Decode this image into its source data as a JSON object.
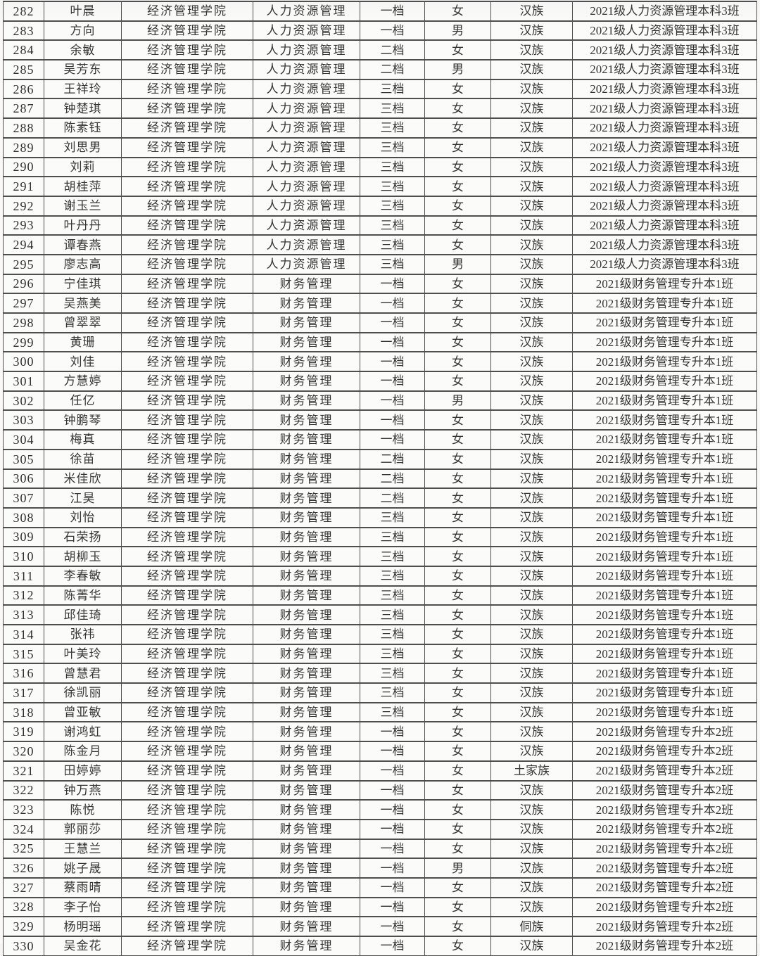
{
  "document": {
    "type": "student-roster-table",
    "college_label": "经济管理学院",
    "tier_values": [
      "一档",
      "二档",
      "三档"
    ],
    "border_color": "#4e4e4e",
    "paper_color": "#fbfbfa",
    "text_color": "#353535"
  },
  "table": {
    "columns": [
      "no",
      "name",
      "college",
      "major",
      "tier",
      "gender",
      "ethnicity",
      "class_name"
    ],
    "rows": [
      [
        "282",
        "叶晨",
        "经济管理学院",
        "人力资源管理",
        "一档",
        "女",
        "汉族",
        "2021级人力资源管理本科3班"
      ],
      [
        "283",
        "方向",
        "经济管理学院",
        "人力资源管理",
        "一档",
        "男",
        "汉族",
        "2021级人力资源管理本科3班"
      ],
      [
        "284",
        "余敏",
        "经济管理学院",
        "人力资源管理",
        "二档",
        "女",
        "汉族",
        "2021级人力资源管理本科3班"
      ],
      [
        "285",
        "吴芳东",
        "经济管理学院",
        "人力资源管理",
        "二档",
        "男",
        "汉族",
        "2021级人力资源管理本科3班"
      ],
      [
        "286",
        "王祥玲",
        "经济管理学院",
        "人力资源管理",
        "三档",
        "女",
        "汉族",
        "2021级人力资源管理本科3班"
      ],
      [
        "287",
        "钟楚琪",
        "经济管理学院",
        "人力资源管理",
        "三档",
        "女",
        "汉族",
        "2021级人力资源管理本科3班"
      ],
      [
        "288",
        "陈素钰",
        "经济管理学院",
        "人力资源管理",
        "三档",
        "女",
        "汉族",
        "2021级人力资源管理本科3班"
      ],
      [
        "289",
        "刘思男",
        "经济管理学院",
        "人力资源管理",
        "三档",
        "女",
        "汉族",
        "2021级人力资源管理本科3班"
      ],
      [
        "290",
        "刘莉",
        "经济管理学院",
        "人力资源管理",
        "三档",
        "女",
        "汉族",
        "2021级人力资源管理本科3班"
      ],
      [
        "291",
        "胡桂萍",
        "经济管理学院",
        "人力资源管理",
        "三档",
        "女",
        "汉族",
        "2021级人力资源管理本科3班"
      ],
      [
        "292",
        "谢玉兰",
        "经济管理学院",
        "人力资源管理",
        "三档",
        "女",
        "汉族",
        "2021级人力资源管理本科3班"
      ],
      [
        "293",
        "叶丹丹",
        "经济管理学院",
        "人力资源管理",
        "三档",
        "女",
        "汉族",
        "2021级人力资源管理本科3班"
      ],
      [
        "294",
        "谭春燕",
        "经济管理学院",
        "人力资源管理",
        "三档",
        "女",
        "汉族",
        "2021级人力资源管理本科3班"
      ],
      [
        "295",
        "廖志高",
        "经济管理学院",
        "人力资源管理",
        "三档",
        "男",
        "汉族",
        "2021级人力资源管理本科3班"
      ],
      [
        "296",
        "宁佳琪",
        "经济管理学院",
        "财务管理",
        "一档",
        "女",
        "汉族",
        "2021级财务管理专升本1班"
      ],
      [
        "297",
        "吴燕美",
        "经济管理学院",
        "财务管理",
        "一档",
        "女",
        "汉族",
        "2021级财务管理专升本1班"
      ],
      [
        "298",
        "曾翠翠",
        "经济管理学院",
        "财务管理",
        "一档",
        "女",
        "汉族",
        "2021级财务管理专升本1班"
      ],
      [
        "299",
        "黄珊",
        "经济管理学院",
        "财务管理",
        "一档",
        "女",
        "汉族",
        "2021级财务管理专升本1班"
      ],
      [
        "300",
        "刘佳",
        "经济管理学院",
        "财务管理",
        "一档",
        "女",
        "汉族",
        "2021级财务管理专升本1班"
      ],
      [
        "301",
        "方慧婷",
        "经济管理学院",
        "财务管理",
        "一档",
        "女",
        "汉族",
        "2021级财务管理专升本1班"
      ],
      [
        "302",
        "任亿",
        "经济管理学院",
        "财务管理",
        "一档",
        "男",
        "汉族",
        "2021级财务管理专升本1班"
      ],
      [
        "303",
        "钟鹏琴",
        "经济管理学院",
        "财务管理",
        "一档",
        "女",
        "汉族",
        "2021级财务管理专升本1班"
      ],
      [
        "304",
        "梅真",
        "经济管理学院",
        "财务管理",
        "一档",
        "女",
        "汉族",
        "2021级财务管理专升本1班"
      ],
      [
        "305",
        "徐苗",
        "经济管理学院",
        "财务管理",
        "二档",
        "女",
        "汉族",
        "2021级财务管理专升本1班"
      ],
      [
        "306",
        "米佳欣",
        "经济管理学院",
        "财务管理",
        "二档",
        "女",
        "汉族",
        "2021级财务管理专升本1班"
      ],
      [
        "307",
        "江昊",
        "经济管理学院",
        "财务管理",
        "二档",
        "女",
        "汉族",
        "2021级财务管理专升本1班"
      ],
      [
        "308",
        "刘怡",
        "经济管理学院",
        "财务管理",
        "三档",
        "女",
        "汉族",
        "2021级财务管理专升本1班"
      ],
      [
        "309",
        "石荣扬",
        "经济管理学院",
        "财务管理",
        "三档",
        "女",
        "汉族",
        "2021级财务管理专升本1班"
      ],
      [
        "310",
        "胡柳玉",
        "经济管理学院",
        "财务管理",
        "三档",
        "女",
        "汉族",
        "2021级财务管理专升本1班"
      ],
      [
        "311",
        "李春敏",
        "经济管理学院",
        "财务管理",
        "三档",
        "女",
        "汉族",
        "2021级财务管理专升本1班"
      ],
      [
        "312",
        "陈菁华",
        "经济管理学院",
        "财务管理",
        "三档",
        "女",
        "汉族",
        "2021级财务管理专升本1班"
      ],
      [
        "313",
        "邱佳琦",
        "经济管理学院",
        "财务管理",
        "三档",
        "女",
        "汉族",
        "2021级财务管理专升本1班"
      ],
      [
        "314",
        "张祎",
        "经济管理学院",
        "财务管理",
        "三档",
        "女",
        "汉族",
        "2021级财务管理专升本1班"
      ],
      [
        "315",
        "叶美玲",
        "经济管理学院",
        "财务管理",
        "三档",
        "女",
        "汉族",
        "2021级财务管理专升本1班"
      ],
      [
        "316",
        "曾慧君",
        "经济管理学院",
        "财务管理",
        "三档",
        "女",
        "汉族",
        "2021级财务管理专升本1班"
      ],
      [
        "317",
        "徐凯丽",
        "经济管理学院",
        "财务管理",
        "三档",
        "女",
        "汉族",
        "2021级财务管理专升本1班"
      ],
      [
        "318",
        "曾亚敏",
        "经济管理学院",
        "财务管理",
        "三档",
        "女",
        "汉族",
        "2021级财务管理专升本1班"
      ],
      [
        "319",
        "谢鸿虹",
        "经济管理学院",
        "财务管理",
        "一档",
        "女",
        "汉族",
        "2021级财务管理专升本2班"
      ],
      [
        "320",
        "陈金月",
        "经济管理学院",
        "财务管理",
        "一档",
        "女",
        "汉族",
        "2021级财务管理专升本2班"
      ],
      [
        "321",
        "田婷婷",
        "经济管理学院",
        "财务管理",
        "一档",
        "女",
        "土家族",
        "2021级财务管理专升本2班"
      ],
      [
        "322",
        "钟万燕",
        "经济管理学院",
        "财务管理",
        "一档",
        "女",
        "汉族",
        "2021级财务管理专升本2班"
      ],
      [
        "323",
        "陈悦",
        "经济管理学院",
        "财务管理",
        "一档",
        "女",
        "汉族",
        "2021级财务管理专升本2班"
      ],
      [
        "324",
        "郭丽莎",
        "经济管理学院",
        "财务管理",
        "一档",
        "女",
        "汉族",
        "2021级财务管理专升本2班"
      ],
      [
        "325",
        "王慧兰",
        "经济管理学院",
        "财务管理",
        "一档",
        "女",
        "汉族",
        "2021级财务管理专升本2班"
      ],
      [
        "326",
        "姚子晟",
        "经济管理学院",
        "财务管理",
        "一档",
        "男",
        "汉族",
        "2021级财务管理专升本2班"
      ],
      [
        "327",
        "蔡雨晴",
        "经济管理学院",
        "财务管理",
        "一档",
        "女",
        "汉族",
        "2021级财务管理专升本2班"
      ],
      [
        "328",
        "李子怡",
        "经济管理学院",
        "财务管理",
        "一档",
        "女",
        "汉族",
        "2021级财务管理专升本2班"
      ],
      [
        "329",
        "杨明瑶",
        "经济管理学院",
        "财务管理",
        "一档",
        "女",
        "侗族",
        "2021级财务管理专升本2班"
      ],
      [
        "330",
        "吴金花",
        "经济管理学院",
        "财务管理",
        "一档",
        "女",
        "汉族",
        "2021级财务管理专升本2班"
      ]
    ]
  }
}
